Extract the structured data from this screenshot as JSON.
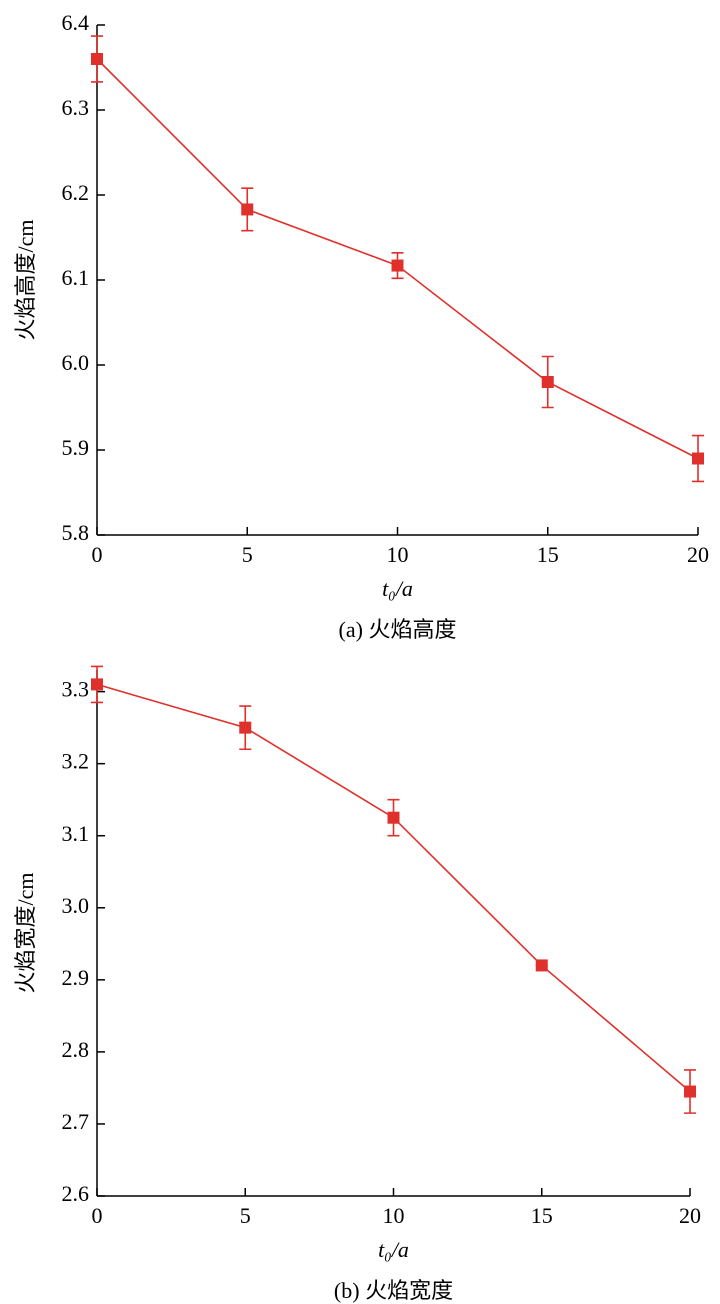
{
  "chart_data": [
    {
      "type": "line",
      "caption": "(a) 火焰高度",
      "x_label": "t₀/a",
      "y_label": "火焰高度/cm",
      "x": [
        0,
        5,
        10,
        15,
        20
      ],
      "series": [
        {
          "color": "#e0302b",
          "values": [
            6.36,
            6.183,
            6.117,
            5.98,
            5.89
          ],
          "errors": [
            0.027,
            0.025,
            0.015,
            0.03,
            0.027
          ]
        }
      ],
      "xlim": [
        0,
        20
      ],
      "xticks": [
        0,
        5,
        10,
        15,
        20
      ],
      "ylim": [
        5.8,
        6.4
      ],
      "yticks": [
        {
          "value": 5.8,
          "label": "5.8"
        },
        {
          "value": 5.9,
          "label": "5.9"
        },
        {
          "value": 6.0,
          "label": "6.0"
        },
        {
          "value": 6.1,
          "label": "6.1"
        },
        {
          "value": 6.2,
          "label": "6.2"
        },
        {
          "value": 6.3,
          "label": "6.3"
        },
        {
          "value": 6.4,
          "label": "6.4"
        }
      ],
      "grid": false
    },
    {
      "type": "line",
      "caption": "(b) 火焰宽度",
      "x_label": "t₀/a",
      "y_label": "火焰宽度/cm",
      "x": [
        0,
        5,
        10,
        15,
        20
      ],
      "series": [
        {
          "color": "#e0302b",
          "values": [
            3.31,
            3.25,
            3.125,
            2.92,
            2.745
          ],
          "errors": [
            0.025,
            0.03,
            0.025,
            0,
            0.03
          ]
        }
      ],
      "xlim": [
        0,
        20
      ],
      "xticks": [
        0,
        5,
        10,
        15,
        20
      ],
      "ylim": [
        2.6,
        3.33
      ],
      "yticks": [
        2.6,
        2.7,
        2.8,
        2.9,
        {
          "value": 3.0,
          "label": "3.0"
        },
        3.1,
        3.2,
        3.3
      ],
      "grid": false
    }
  ]
}
